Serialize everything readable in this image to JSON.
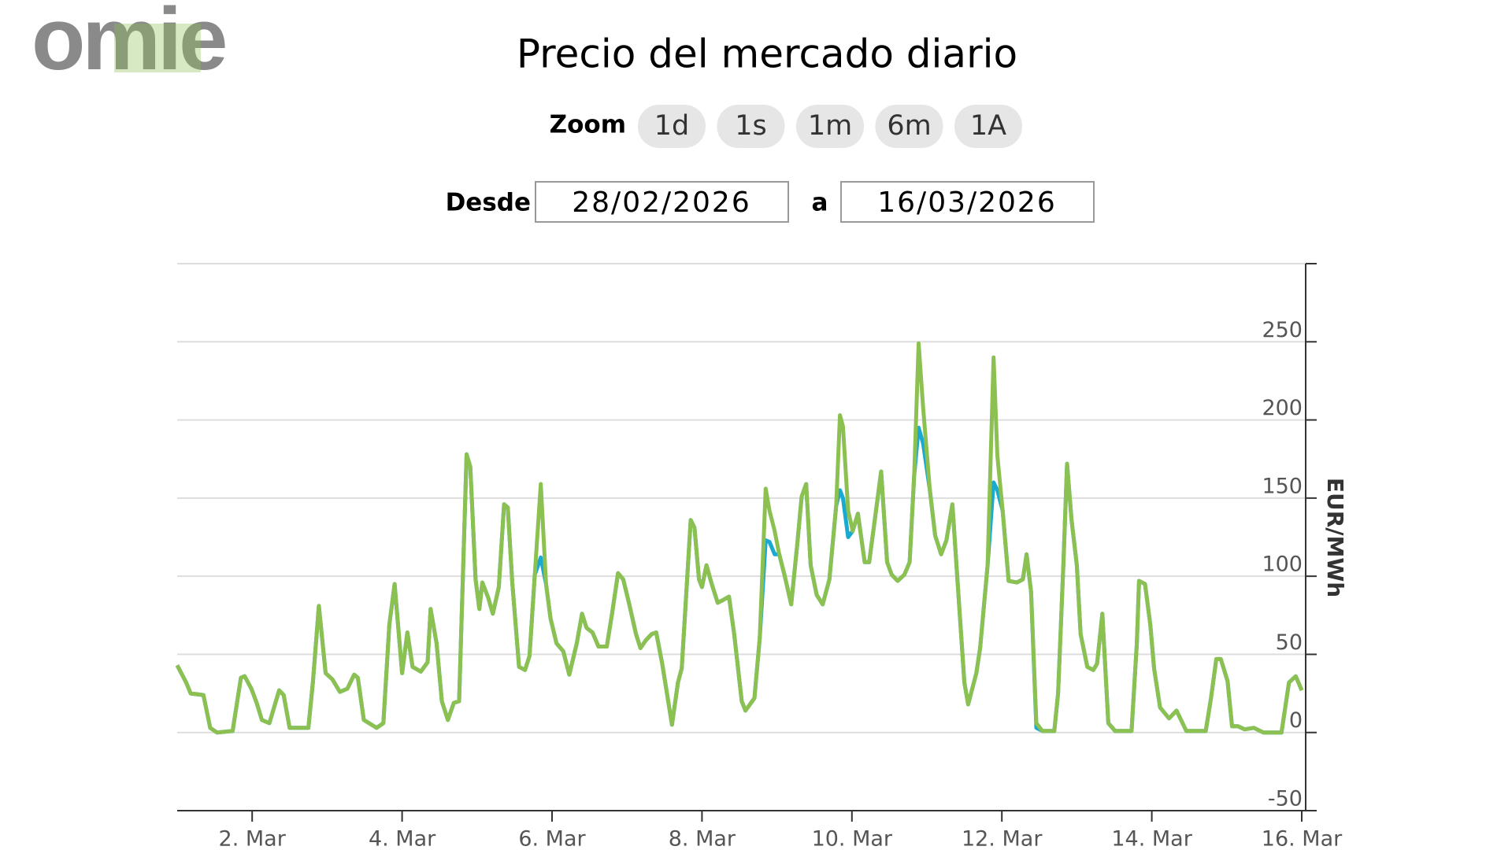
{
  "header": {
    "logo": "omie"
  },
  "controls": {
    "zoom_label": "Zoom",
    "zoom_buttons": [
      "1d",
      "1s",
      "1m",
      "6m",
      "1A"
    ],
    "from_label": "Desde",
    "from_date": "28/02/2026",
    "to_label": "a",
    "to_date": "16/03/2026"
  },
  "chart_data": {
    "type": "line",
    "title": "Precio del mercado diario",
    "y_label": "EUR/MWh",
    "grid": true,
    "y_axis_side": "right",
    "xlim": [
      1,
      16
    ],
    "ylim": [
      -50,
      300
    ],
    "xticks": [
      {
        "value": 2,
        "label": "2. Mar"
      },
      {
        "value": 4,
        "label": "4. Mar"
      },
      {
        "value": 6,
        "label": "6. Mar"
      },
      {
        "value": 8,
        "label": "8. Mar"
      },
      {
        "value": 10,
        "label": "10. Mar"
      },
      {
        "value": 12,
        "label": "12. Mar"
      },
      {
        "value": 14,
        "label": "14. Mar"
      },
      {
        "value": 16,
        "label": "16. Mar"
      }
    ],
    "yticks": [
      -50,
      0,
      50,
      100,
      150,
      200,
      250
    ],
    "x": [
      1.0,
      1.12,
      1.18,
      1.35,
      1.44,
      1.53,
      1.74,
      1.85,
      1.9,
      1.99,
      2.06,
      2.13,
      2.23,
      2.36,
      2.42,
      2.5,
      2.75,
      2.81,
      2.89,
      2.98,
      3.07,
      3.17,
      3.27,
      3.36,
      3.41,
      3.49,
      3.66,
      3.75,
      3.83,
      3.9,
      4.0,
      4.07,
      4.14,
      4.25,
      4.34,
      4.38,
      4.46,
      4.53,
      4.61,
      4.69,
      4.76,
      4.86,
      4.91,
      4.98,
      5.03,
      5.07,
      5.15,
      5.21,
      5.29,
      5.36,
      5.41,
      5.47,
      5.56,
      5.64,
      5.7,
      5.77,
      5.85,
      5.92,
      5.98,
      6.06,
      6.15,
      6.23,
      6.33,
      6.4,
      6.46,
      6.54,
      6.62,
      6.73,
      6.8,
      6.88,
      6.95,
      7.03,
      7.12,
      7.18,
      7.25,
      7.33,
      7.39,
      7.47,
      7.6,
      7.68,
      7.73,
      7.85,
      7.9,
      7.96,
      8.0,
      8.06,
      8.13,
      8.21,
      8.29,
      8.36,
      8.43,
      8.53,
      8.58,
      8.7,
      8.77,
      8.85,
      8.9,
      8.97,
      9.03,
      9.1,
      9.19,
      9.27,
      9.33,
      9.39,
      9.45,
      9.53,
      9.61,
      9.7,
      9.79,
      9.84,
      9.88,
      9.95,
      10.01,
      10.08,
      10.17,
      10.23,
      10.33,
      10.39,
      10.47,
      10.53,
      10.61,
      10.7,
      10.77,
      10.83,
      10.89,
      10.95,
      11.04,
      11.11,
      11.19,
      11.26,
      11.34,
      11.43,
      11.5,
      11.55,
      11.66,
      11.71,
      11.81,
      11.89,
      11.94,
      12.01,
      12.09,
      12.2,
      12.28,
      12.33,
      12.39,
      12.46,
      12.54,
      12.7,
      12.75,
      12.82,
      12.87,
      12.93,
      13.0,
      13.05,
      13.14,
      13.22,
      13.27,
      13.34,
      13.42,
      13.51,
      13.73,
      13.8,
      13.83,
      13.91,
      13.98,
      14.03,
      14.11,
      14.23,
      14.33,
      14.46,
      14.72,
      14.79,
      14.86,
      14.92,
      15.01,
      15.07,
      15.15,
      15.24,
      15.36,
      15.49,
      15.73,
      15.83,
      15.92,
      16.0
    ],
    "series": [
      {
        "color": "#1aa9d0",
        "values": [
          43,
          32,
          25,
          24,
          3,
          0,
          1,
          35,
          36,
          28,
          19,
          8,
          6,
          27,
          24,
          3,
          3,
          32,
          81,
          38,
          34,
          26,
          28,
          37,
          35,
          8,
          3,
          6,
          69,
          95,
          38,
          64,
          42,
          39,
          45,
          79,
          57,
          20,
          8,
          19,
          20,
          178,
          170,
          98,
          79,
          96,
          86,
          76,
          93,
          146,
          144,
          96,
          42,
          40,
          49,
          101,
          112,
          95,
          73,
          57,
          52,
          37,
          57,
          76,
          67,
          64,
          55,
          55,
          76,
          102,
          98,
          82,
          63,
          54,
          59,
          63,
          64,
          44,
          5,
          32,
          41,
          136,
          131,
          98,
          93,
          107,
          95,
          83,
          85,
          87,
          63,
          20,
          14,
          22,
          60,
          123,
          122,
          114,
          114,
          101,
          82,
          120,
          151,
          159,
          107,
          88,
          82,
          98,
          145,
          155,
          150,
          125,
          129,
          140,
          109,
          109,
          145,
          167,
          109,
          101,
          97,
          101,
          109,
          164,
          195,
          185,
          155,
          126,
          114,
          123,
          146,
          82,
          32,
          18,
          38,
          54,
          107,
          160,
          155,
          142,
          97,
          96,
          98,
          114,
          90,
          3,
          1,
          1,
          25,
          107,
          172,
          136,
          107,
          63,
          42,
          40,
          44,
          76,
          6,
          1,
          1,
          57,
          97,
          95,
          69,
          41,
          16,
          9,
          14,
          1,
          1,
          22,
          47,
          47,
          33,
          4,
          4,
          2,
          3,
          0,
          0,
          32,
          36,
          27
        ]
      },
      {
        "color": "#8cc152",
        "values": [
          43,
          32,
          25,
          24,
          3,
          0,
          1,
          35,
          36,
          28,
          19,
          8,
          6,
          27,
          24,
          3,
          3,
          32,
          81,
          38,
          34,
          26,
          28,
          37,
          35,
          8,
          3,
          6,
          69,
          95,
          38,
          64,
          42,
          39,
          45,
          79,
          57,
          20,
          8,
          19,
          20,
          178,
          170,
          98,
          79,
          96,
          86,
          76,
          93,
          146,
          144,
          96,
          42,
          40,
          49,
          101,
          159,
          95,
          73,
          57,
          52,
          37,
          57,
          76,
          67,
          64,
          55,
          55,
          76,
          102,
          98,
          82,
          63,
          54,
          59,
          63,
          64,
          44,
          5,
          32,
          41,
          136,
          131,
          98,
          93,
          107,
          95,
          83,
          85,
          87,
          63,
          20,
          14,
          22,
          60,
          156,
          142,
          129,
          114,
          101,
          82,
          120,
          151,
          159,
          107,
          88,
          82,
          98,
          145,
          203,
          196,
          142,
          129,
          140,
          109,
          109,
          145,
          167,
          109,
          101,
          97,
          101,
          109,
          164,
          249,
          208,
          155,
          126,
          114,
          123,
          146,
          82,
          32,
          18,
          38,
          54,
          107,
          240,
          177,
          142,
          97,
          96,
          98,
          114,
          90,
          6,
          1,
          1,
          25,
          107,
          172,
          136,
          107,
          63,
          42,
          40,
          44,
          76,
          6,
          1,
          1,
          57,
          97,
          95,
          69,
          41,
          16,
          9,
          14,
          1,
          1,
          22,
          47,
          47,
          33,
          4,
          4,
          2,
          3,
          0,
          0,
          32,
          36,
          27
        ]
      }
    ]
  }
}
